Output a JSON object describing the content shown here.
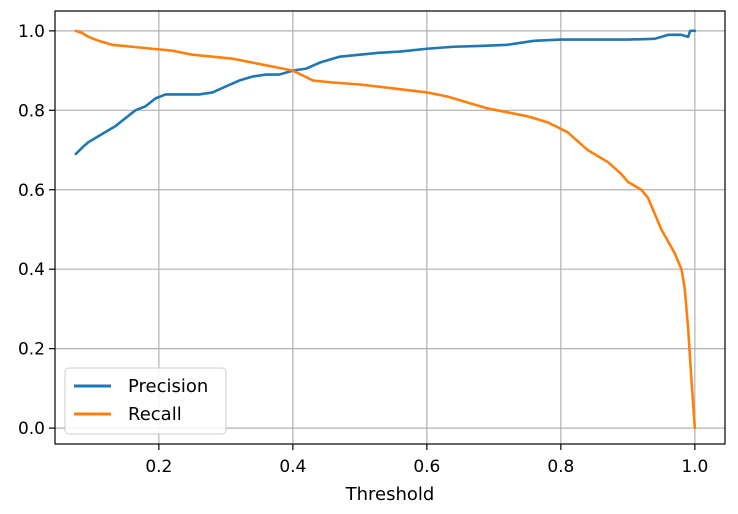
{
  "chart_data": {
    "type": "line",
    "title": "",
    "xlabel": "Threshold",
    "ylabel": "",
    "xlim": [
      0.045,
      1.045
    ],
    "ylim": [
      -0.04,
      1.05
    ],
    "grid": true,
    "legend_position": "lower-left",
    "x_ticks": [
      0.2,
      0.4,
      0.6,
      0.8,
      1.0
    ],
    "x_tick_labels": [
      "0.2",
      "0.4",
      "0.6",
      "0.8",
      "1.0"
    ],
    "y_ticks": [
      0.0,
      0.2,
      0.4,
      0.6,
      0.8,
      1.0
    ],
    "y_tick_labels": [
      "0.0",
      "0.2",
      "0.4",
      "0.6",
      "0.8",
      "1.0"
    ],
    "series": [
      {
        "name": "Precision",
        "color": "#1f77b4",
        "x": [
          0.076,
          0.082,
          0.088,
          0.095,
          0.105,
          0.12,
          0.135,
          0.15,
          0.165,
          0.18,
          0.195,
          0.21,
          0.23,
          0.26,
          0.28,
          0.3,
          0.32,
          0.34,
          0.36,
          0.38,
          0.4,
          0.42,
          0.44,
          0.47,
          0.5,
          0.53,
          0.56,
          0.6,
          0.64,
          0.68,
          0.72,
          0.76,
          0.8,
          0.85,
          0.9,
          0.94,
          0.96,
          0.98,
          0.99,
          0.993,
          1.0
        ],
        "y": [
          0.69,
          0.7,
          0.71,
          0.72,
          0.73,
          0.745,
          0.76,
          0.78,
          0.8,
          0.81,
          0.83,
          0.84,
          0.84,
          0.84,
          0.845,
          0.86,
          0.875,
          0.885,
          0.89,
          0.89,
          0.9,
          0.905,
          0.92,
          0.935,
          0.94,
          0.945,
          0.948,
          0.955,
          0.96,
          0.962,
          0.965,
          0.975,
          0.978,
          0.978,
          0.978,
          0.98,
          0.99,
          0.99,
          0.985,
          1.0,
          1.0
        ]
      },
      {
        "name": "Recall",
        "color": "#ff7f0e",
        "x": [
          0.076,
          0.085,
          0.095,
          0.11,
          0.13,
          0.16,
          0.19,
          0.22,
          0.25,
          0.28,
          0.31,
          0.34,
          0.37,
          0.4,
          0.43,
          0.46,
          0.5,
          0.55,
          0.6,
          0.63,
          0.66,
          0.69,
          0.72,
          0.75,
          0.78,
          0.81,
          0.84,
          0.87,
          0.89,
          0.9,
          0.92,
          0.93,
          0.94,
          0.95,
          0.96,
          0.97,
          0.98,
          0.985,
          0.99,
          0.995,
          1.0
        ],
        "y": [
          1.0,
          0.995,
          0.985,
          0.975,
          0.965,
          0.96,
          0.955,
          0.95,
          0.94,
          0.935,
          0.93,
          0.92,
          0.91,
          0.9,
          0.875,
          0.87,
          0.865,
          0.855,
          0.845,
          0.835,
          0.82,
          0.805,
          0.795,
          0.785,
          0.77,
          0.745,
          0.7,
          0.67,
          0.64,
          0.62,
          0.6,
          0.58,
          0.54,
          0.5,
          0.47,
          0.44,
          0.4,
          0.35,
          0.25,
          0.12,
          0.0
        ]
      }
    ]
  }
}
